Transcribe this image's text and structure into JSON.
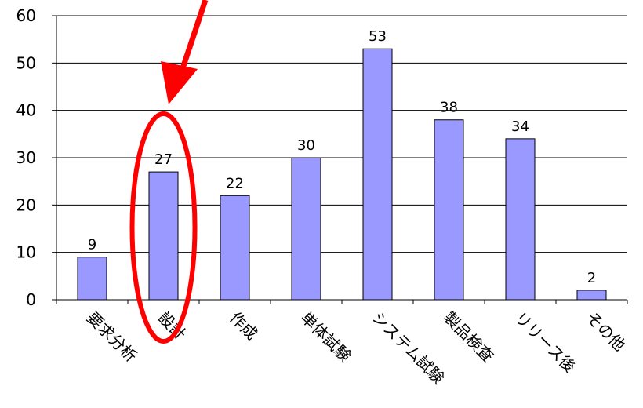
{
  "chart_data": {
    "type": "bar",
    "categories": [
      "要求分析",
      "設計",
      "作成",
      "単体試験",
      "システム試験",
      "製品検査",
      "リリース後",
      "その他"
    ],
    "values": [
      9,
      27,
      22,
      30,
      53,
      38,
      34,
      2
    ],
    "data_labels": [
      "9",
      "27",
      "22",
      "30",
      "53",
      "38",
      "34",
      "2"
    ],
    "y_ticks": [
      "0",
      "10",
      "20",
      "30",
      "40",
      "50",
      "60"
    ],
    "ylim": [
      0,
      60
    ],
    "grid": true,
    "bar_color": "#9999ff",
    "annotation": {
      "type": "highlight-ellipse-with-arrow",
      "target_category": "設計",
      "color": "#ff0000"
    }
  }
}
